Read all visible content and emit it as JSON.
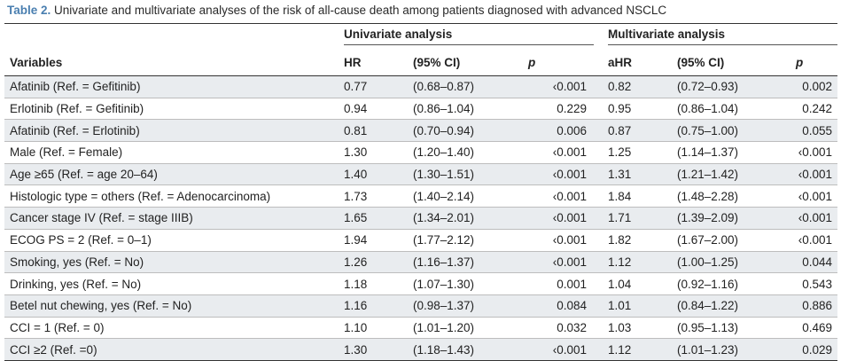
{
  "caption": {
    "label": "Table 2.",
    "text": "Univariate and multivariate analyses of the risk of all-cause death among patients diagnosed with advanced NSCLC"
  },
  "groups": {
    "univariate": "Univariate analysis",
    "multivariate": "Multivariate analysis"
  },
  "columns": {
    "variables": "Variables",
    "hr": "HR",
    "ci": "(95% CI)",
    "p": "p",
    "ahr": "aHR",
    "aci": "(95% CI)",
    "ap": "p"
  },
  "rows": [
    {
      "variable": "Afatinib (Ref. = Gefitinib)",
      "hr": "0.77",
      "ci": "(0.68–0.87)",
      "p": "‹0.001",
      "ahr": "0.82",
      "aci": "(0.72–0.93)",
      "ap": "0.002"
    },
    {
      "variable": "Erlotinib (Ref. = Gefitinib)",
      "hr": "0.94",
      "ci": "(0.86–1.04)",
      "p": "0.229",
      "ahr": "0.95",
      "aci": "(0.86–1.04)",
      "ap": "0.242"
    },
    {
      "variable": "Afatinib (Ref. = Erlotinib)",
      "hr": "0.81",
      "ci": "(0.70–0.94)",
      "p": "0.006",
      "ahr": "0.87",
      "aci": "(0.75–1.00)",
      "ap": "0.055"
    },
    {
      "variable": "Male (Ref. = Female)",
      "hr": "1.30",
      "ci": "(1.20–1.40)",
      "p": "‹0.001",
      "ahr": "1.25",
      "aci": "(1.14–1.37)",
      "ap": "‹0.001"
    },
    {
      "variable": "Age ≥65 (Ref. = age 20–64)",
      "hr": "1.40",
      "ci": "(1.30–1.51)",
      "p": "‹0.001",
      "ahr": "1.31",
      "aci": "(1.21–1.42)",
      "ap": "‹0.001"
    },
    {
      "variable": "Histologic type = others (Ref. = Adenocarcinoma)",
      "hr": "1.73",
      "ci": "(1.40–2.14)",
      "p": "‹0.001",
      "ahr": "1.84",
      "aci": "(1.48–2.28)",
      "ap": "‹0.001"
    },
    {
      "variable": "Cancer stage IV (Ref. = stage IIIB)",
      "hr": "1.65",
      "ci": "(1.34–2.01)",
      "p": "‹0.001",
      "ahr": "1.71",
      "aci": "(1.39–2.09)",
      "ap": "‹0.001"
    },
    {
      "variable": "ECOG PS = 2 (Ref. = 0–1)",
      "hr": "1.94",
      "ci": "(1.77–2.12)",
      "p": "‹0.001",
      "ahr": "1.82",
      "aci": "(1.67–2.00)",
      "ap": "‹0.001"
    },
    {
      "variable": "Smoking, yes (Ref. = No)",
      "hr": "1.26",
      "ci": "(1.16–1.37)",
      "p": "‹0.001",
      "ahr": "1.12",
      "aci": "(1.00–1.25)",
      "ap": "0.044"
    },
    {
      "variable": "Drinking, yes (Ref. = No)",
      "hr": "1.18",
      "ci": "(1.07–1.30)",
      "p": "0.001",
      "ahr": "1.04",
      "aci": "(0.92–1.16)",
      "ap": "0.543"
    },
    {
      "variable": "Betel nut chewing, yes (Ref. = No)",
      "hr": "1.16",
      "ci": "(0.98–1.37)",
      "p": "0.084",
      "ahr": "1.01",
      "aci": "(0.84–1.22)",
      "ap": "0.886"
    },
    {
      "variable": "CCI = 1 (Ref. = 0)",
      "hr": "1.10",
      "ci": "(1.01–1.20)",
      "p": "0.032",
      "ahr": "1.03",
      "aci": "(0.95–1.13)",
      "ap": "0.469"
    },
    {
      "variable": "CCI ≥2 (Ref. =0)",
      "hr": "1.30",
      "ci": "(1.18–1.43)",
      "p": "‹0.001",
      "ahr": "1.12",
      "aci": "(1.01–1.23)",
      "ap": "0.029"
    }
  ],
  "colors": {
    "caption_label": "#4a7fb0",
    "row_stripe": "#e9ecef"
  }
}
